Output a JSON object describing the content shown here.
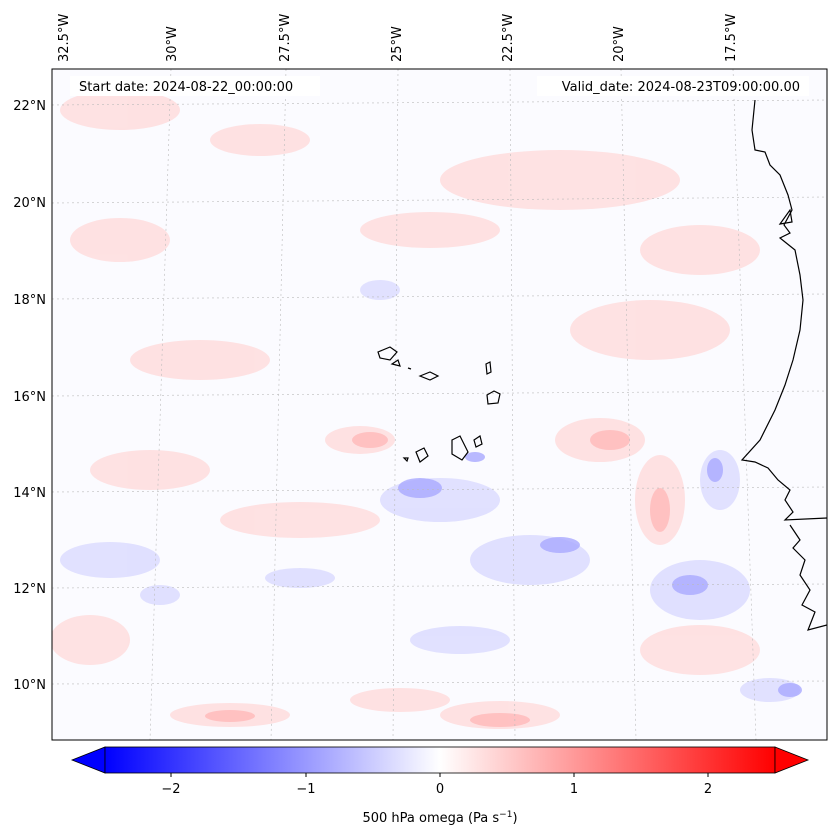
{
  "header": {
    "start_date": "Start date: 2024-08-22_00:00:00",
    "valid_date": "Valid_date: 2024-08-23T09:00:00.00"
  },
  "map": {
    "lon_labels": [
      "32.5°W",
      "30°W",
      "27.5°W",
      "25°W",
      "22.5°W",
      "20°W",
      "17.5°W"
    ],
    "lat_labels": [
      "22°N",
      "20°N",
      "18°N",
      "16°N",
      "14°N",
      "12°N",
      "10°N"
    ],
    "gridlines": true,
    "coastline_color": "#000000"
  },
  "colorbar": {
    "label_main": "500 hPa omega (Pa s",
    "label_sup": "−1",
    "label_end": ")",
    "tick_labels": [
      "−2",
      "−1",
      "0",
      "1",
      "2"
    ],
    "colormap": "bwr",
    "vmin": -2.5,
    "vmax": 2.5,
    "extend": "both"
  }
}
